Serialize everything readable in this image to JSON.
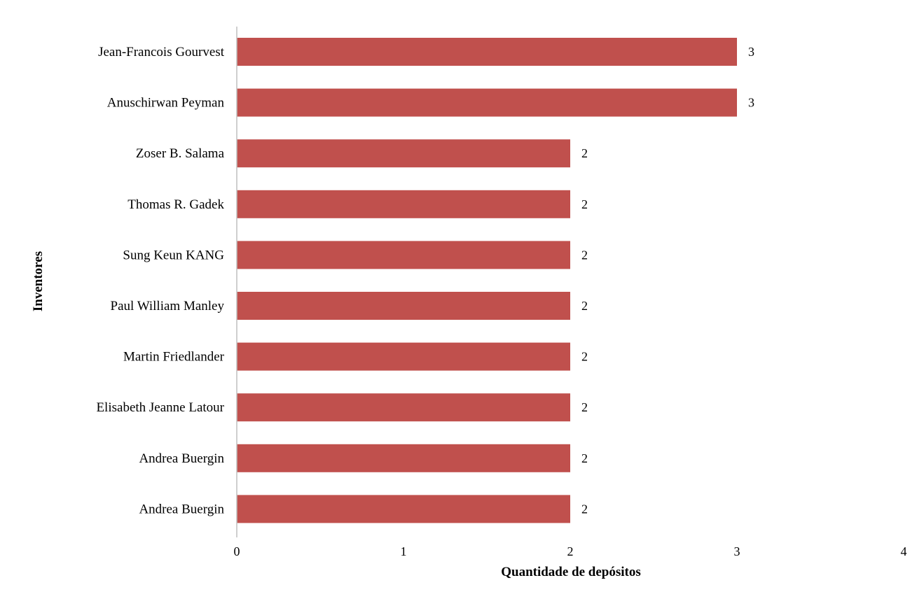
{
  "chart_data": {
    "type": "bar",
    "orientation": "horizontal",
    "title": "",
    "xlabel": "Quantidade de depósitos",
    "ylabel": "Inventores",
    "categories": [
      "Jean-Francois Gourvest",
      "Anuschirwan Peyman",
      "Zoser B. Salama",
      "Thomas R. Gadek",
      "Sung Keun KANG",
      "Paul William Manley",
      "Martin Friedlander",
      "Elisabeth Jeanne Latour",
      "Andrea Buergin",
      "Andrea Buergin"
    ],
    "values": [
      3,
      3,
      2,
      2,
      2,
      2,
      2,
      2,
      2,
      2
    ],
    "data_labels": [
      "3",
      "3",
      "2",
      "2",
      "2",
      "2",
      "2",
      "2",
      "2",
      "2"
    ],
    "xlim": [
      0,
      4
    ],
    "xticks": [
      "0",
      "1",
      "2",
      "3",
      "4"
    ],
    "grid": false,
    "legend": "none",
    "colors": {
      "bar": "#c0504d",
      "axis": "#bfbfbf"
    }
  }
}
